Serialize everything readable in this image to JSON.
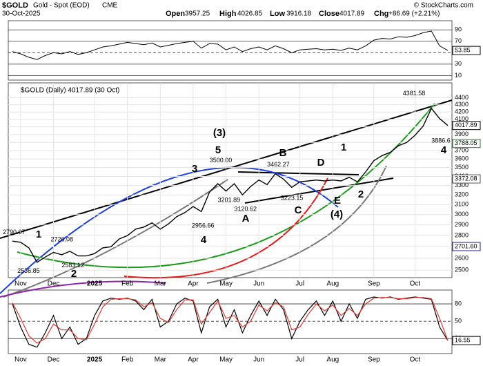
{
  "header": {
    "symbol": "$GOLD",
    "name": "Gold - Spot (EOD)",
    "exchange": "CME",
    "date": "30-Oct-2025",
    "stats": [
      {
        "label": "Open",
        "value": 3957.25
      },
      {
        "label": "High",
        "value": 4026.85
      },
      {
        "label": "Low",
        "value": 3916.18
      },
      {
        "label": "Close",
        "value": 4017.89
      },
      {
        "label": "Chg",
        "value": "+86.69 (+2.21%)"
      }
    ],
    "credit": "© StockCharts.com"
  },
  "chart_data": [
    {
      "type": "line",
      "color": "#000000",
      "values": [
        52,
        48,
        42,
        38,
        45,
        50,
        48,
        52,
        47,
        50,
        55,
        60,
        62,
        65,
        68,
        66,
        64,
        67,
        60,
        63,
        66,
        68,
        70,
        58,
        66,
        65,
        55,
        60,
        52,
        57,
        60,
        55,
        62,
        57,
        50,
        55,
        56,
        57,
        55,
        56,
        54,
        58,
        55,
        62,
        72,
        75,
        74,
        78,
        77,
        80,
        85,
        88,
        62,
        53.85
      ],
      "ylim": [
        2,
        106
      ],
      "yticks": [
        10,
        30,
        50,
        70,
        90
      ]
    },
    {
      "type": "line",
      "title": "$GOLD (Daily) 4017.89 (30 Oct)",
      "log": true,
      "color": "#000000",
      "categories": [
        null,
        "Nov",
        null,
        null,
        null,
        "Dec",
        null,
        null,
        null,
        null,
        "2025",
        null,
        null,
        null,
        "Feb",
        null,
        null,
        null,
        "Mar",
        null,
        null,
        null,
        "Apr",
        null,
        null,
        null,
        "May",
        null,
        null,
        null,
        "Jun",
        null,
        null,
        null,
        null,
        "Jul",
        null,
        null,
        null,
        "Aug",
        null,
        null,
        null,
        null,
        "Sep",
        null,
        null,
        null,
        null,
        "Oct",
        null,
        null,
        null,
        null
      ],
      "values": [
        2750,
        2740,
        2690,
        2565,
        2610,
        2650,
        2630,
        2660,
        2620,
        2620,
        2640,
        2690,
        2700,
        2770,
        2800,
        2860,
        2880,
        2920,
        2860,
        2910,
        2980,
        3020,
        3080,
        3030,
        3230,
        3320,
        3240,
        3320,
        3200,
        3290,
        3360,
        3310,
        3430,
        3370,
        3280,
        3340,
        3350,
        3360,
        3350,
        3360,
        3350,
        3390,
        3340,
        3450,
        3580,
        3640,
        3680,
        3760,
        3800,
        3890,
        4010,
        4250,
        4110,
        4017.89
      ],
      "ylim": [
        2440,
        4620
      ],
      "yticks": [
        2500,
        2600,
        2700,
        2800,
        2900,
        3000,
        3100,
        3200,
        3300,
        3400,
        3500,
        3600,
        3700,
        3800,
        3900,
        4000,
        4100,
        4200,
        4300,
        4400
      ],
      "grid": true,
      "price_labels": [
        {
          "value": 3788.05,
          "label": "3788.05",
          "color": "#2a7a2a"
        },
        {
          "value": 3372.08,
          "label": "3372.08",
          "color": "#555555"
        },
        {
          "value": 2701.6,
          "label": "2701.60",
          "color": "#1a237e"
        }
      ],
      "annotations": [
        {
          "value": 4381.58,
          "label": "4381.58"
        },
        {
          "value": 3500,
          "label": "3500.00"
        },
        {
          "value": 3462.27,
          "label": "3462.27"
        },
        {
          "value": 2790.07,
          "label": "2790.07"
        },
        {
          "value": 2726.08,
          "label": "2726.08"
        },
        {
          "value": 2536.85,
          "label": "2536.85"
        },
        {
          "value": 2583.12,
          "label": "2583.12"
        },
        {
          "value": 2956.66,
          "label": "2956.66"
        },
        {
          "value": 3201.89,
          "label": "3201.89"
        },
        {
          "value": 3120.62,
          "label": "3120.62"
        },
        {
          "value": 3223.15,
          "label": "3223.15"
        },
        {
          "value": 3886.6,
          "label": "3886.6"
        }
      ],
      "waves": [
        {
          "text": "(3)",
          "color": "#000000"
        },
        {
          "text": "5",
          "color": "#8e24aa"
        },
        {
          "text": "3",
          "color": "#8e24aa"
        },
        {
          "text": "4",
          "color": "#8e24aa"
        },
        {
          "text": "1",
          "color": "#8e24aa"
        },
        {
          "text": "2",
          "color": "#8e24aa"
        },
        {
          "text": "B",
          "color": "#8e24aa"
        },
        {
          "text": "A",
          "color": "#8e24aa"
        },
        {
          "text": "D",
          "color": "#8e24aa"
        },
        {
          "text": "C",
          "color": "#8e24aa"
        },
        {
          "text": "E",
          "color": "#8e24aa"
        },
        {
          "text": "(4)",
          "color": "#000000"
        },
        {
          "text": "1",
          "color": "#8e24aa"
        },
        {
          "text": "2",
          "color": "#666666"
        },
        {
          "text": "4",
          "color": "#666666"
        }
      ]
    },
    {
      "type": "line",
      "series": [
        {
          "color": "#000000",
          "values": [
            80,
            40,
            10,
            5,
            30,
            60,
            20,
            40,
            10,
            20,
            60,
            85,
            90,
            88,
            90,
            85,
            70,
            88,
            40,
            50,
            80,
            90,
            85,
            30,
            75,
            88,
            40,
            70,
            30,
            60,
            85,
            60,
            88,
            70,
            20,
            50,
            70,
            85,
            60,
            85,
            50,
            80,
            55,
            88,
            92,
            90,
            92,
            88,
            90,
            92,
            90,
            88,
            40,
            16.55
          ]
        },
        {
          "color": "#e53935",
          "values": [
            82,
            55,
            25,
            12,
            20,
            45,
            35,
            35,
            20,
            18,
            45,
            75,
            88,
            89,
            89,
            87,
            75,
            82,
            55,
            48,
            70,
            87,
            87,
            45,
            65,
            85,
            55,
            60,
            40,
            50,
            78,
            68,
            82,
            75,
            35,
            40,
            62,
            80,
            68,
            78,
            60,
            72,
            60,
            80,
            90,
            91,
            91,
            89,
            89,
            91,
            91,
            89,
            55,
            16.84
          ]
        }
      ],
      "ylim": [
        -6,
        104
      ],
      "yticks": [
        20,
        50,
        80
      ]
    }
  ]
}
